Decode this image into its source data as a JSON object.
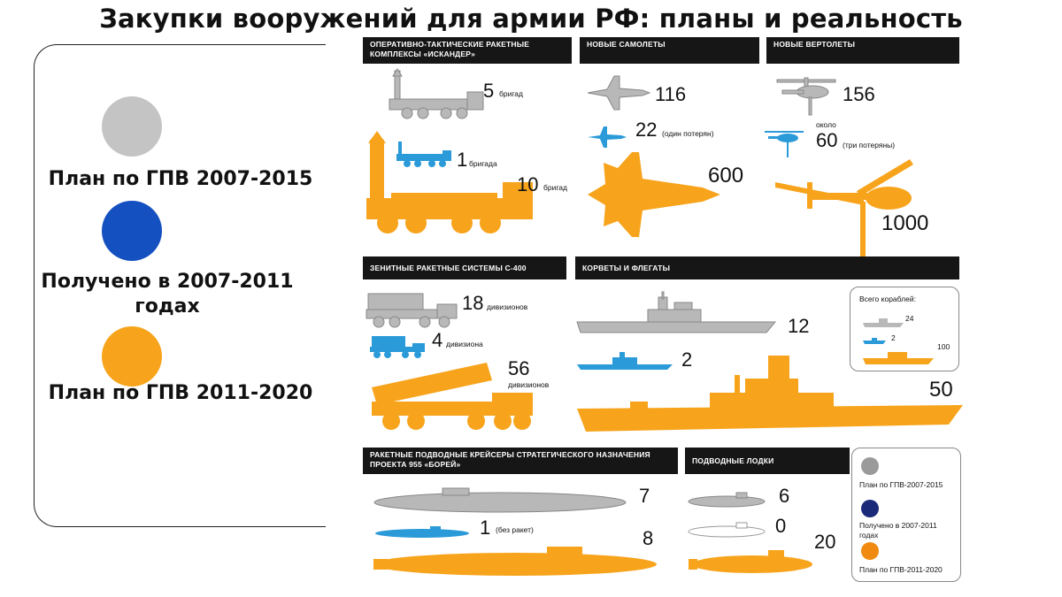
{
  "title": "Закупки вооружений для армии РФ:  планы и реальность",
  "colors": {
    "plan2015": "#c4c4c4",
    "received": "#1450c0",
    "plan2020": "#f7a41c",
    "blue_small": "#2a9ad8"
  },
  "legend": [
    {
      "label": "План по ГПВ 2007-2015",
      "color": "#c4c4c4"
    },
    {
      "label": "Получено в 2007-2011 годах",
      "color": "#1450c0"
    },
    {
      "label": "План по ГПВ 2011-2020",
      "color": "#f7a41c"
    }
  ],
  "panels": {
    "iskander": {
      "header": "Оперативно-тактические ракетные комплексы «Искандер»",
      "plan2015": {
        "value": "5",
        "unit": "бригад"
      },
      "received": {
        "value": "1",
        "unit": "бригада"
      },
      "plan2020": {
        "value": "10",
        "unit": "бригад"
      }
    },
    "planes": {
      "header": "Новые самолеты",
      "plan2015": {
        "value": "116"
      },
      "received": {
        "value": "22",
        "note": "(один потерян)"
      },
      "plan2020": {
        "value": "600"
      }
    },
    "helicopters": {
      "header": "Новые вертолеты",
      "plan2015": {
        "value": "156"
      },
      "received": {
        "prefix": "около",
        "value": "60",
        "note": "(три потеряны)"
      },
      "plan2020": {
        "value": "1000"
      }
    },
    "s400": {
      "header": "Зенитные ракетные системы С-400",
      "plan2015": {
        "value": "18",
        "unit": "дивизионов"
      },
      "received": {
        "value": "4",
        "unit": "дивизиона"
      },
      "plan2020": {
        "value": "56",
        "unit": "дивизионов"
      }
    },
    "corvettes": {
      "header": "Корветы и флегаты",
      "plan2015": {
        "value": "12"
      },
      "received": {
        "value": "2"
      },
      "plan2020": {
        "value": "50"
      },
      "total_box": {
        "title": "Всего кораблей:",
        "plan2015": "24",
        "received": "2",
        "plan2020": "100"
      }
    },
    "borei": {
      "header": "Ракетные подводные крейсеры стратегического назначения проекта 955 «Борей»",
      "plan2015": {
        "value": "7"
      },
      "received": {
        "value": "1",
        "note": "(без ракет)"
      },
      "plan2020": {
        "value": "8"
      }
    },
    "submarines": {
      "header": "Подводные лодки",
      "plan2015": {
        "value": "6"
      },
      "received": {
        "value": "0"
      },
      "plan2020": {
        "value": "20"
      }
    }
  },
  "small_legend": [
    {
      "label": "План по ГПВ-2007-2015",
      "color": "#9a9a9a"
    },
    {
      "label": "Получено в 2007-2011 годах",
      "color": "#1a2a78"
    },
    {
      "label": "План по ГПВ-2011-2020",
      "color": "#f08a10"
    }
  ]
}
